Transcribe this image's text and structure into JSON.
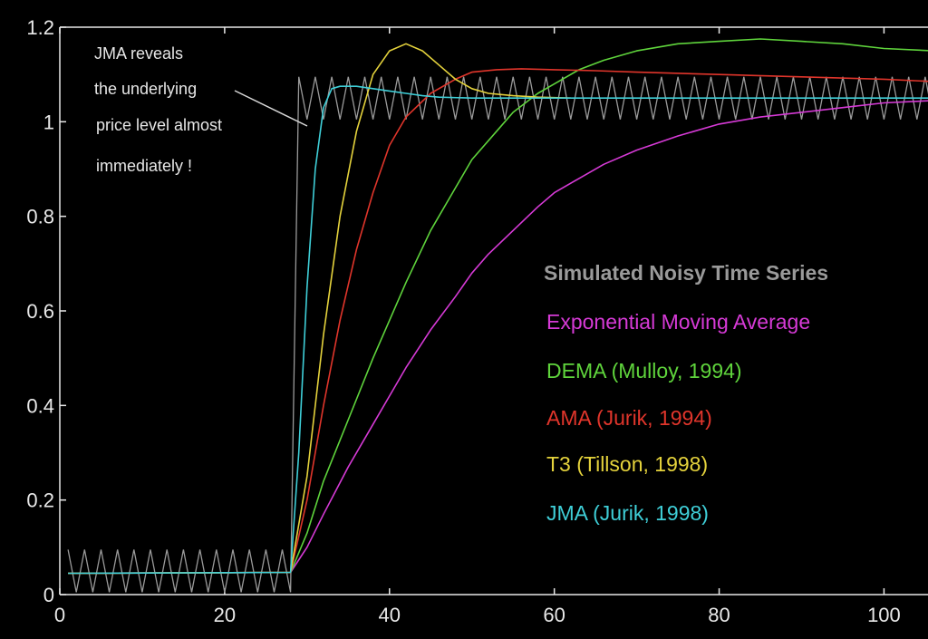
{
  "chart_data": {
    "type": "line",
    "xlim": [
      0,
      106
    ],
    "ylim": [
      0,
      1.2
    ],
    "x_ticks": [
      0,
      20,
      40,
      60,
      80,
      100
    ],
    "x_tick_labels": [
      "0",
      "20",
      "40",
      "60",
      "80",
      "100"
    ],
    "y_ticks": [
      0,
      0.2,
      0.4,
      0.6,
      0.8,
      1,
      1.2
    ],
    "y_tick_labels": [
      "0",
      "0.2",
      "0.4",
      "0.6",
      "0.8",
      "1",
      "1.2"
    ],
    "grid": false,
    "legend": {
      "placement": "right-center",
      "entries": [
        {
          "text": "Simulated Noisy Time Series",
          "color": "#9a9a9a",
          "bold": true
        },
        {
          "text": "Exponential Moving Average",
          "color": "#d63ad6"
        },
        {
          "text": "DEMA   (Mulloy, 1994)",
          "color": "#5fd43c"
        },
        {
          "text": "AMA   (Jurik, 1994)",
          "color": "#e0352b"
        },
        {
          "text": "T3   (Tillson, 1998)",
          "color": "#e4d23c"
        },
        {
          "text": "JMA   (Jurik, 1998)",
          "color": "#3fcfd8"
        }
      ]
    },
    "annotation": {
      "lines": [
        "JMA reveals",
        "the underlying",
        "price level almost",
        "immediately !"
      ],
      "arrow_to": [
        30,
        1.0
      ]
    },
    "noisy_series": {
      "color": "#9a9a9a",
      "x_start": 1,
      "x_end": 106,
      "step": 1,
      "base_low": 0.05,
      "base_high": 1.05,
      "step_x": 28.5,
      "amplitude": 0.045
    },
    "series": [
      {
        "color": "#d63ad6",
        "x": [
          1,
          28,
          30,
          32,
          35,
          38,
          40,
          42,
          45,
          48,
          50,
          52,
          55,
          58,
          60,
          63,
          66,
          70,
          75,
          80,
          85,
          90,
          95,
          100,
          106
        ],
        "y": [
          0.045,
          0.047,
          0.1,
          0.17,
          0.27,
          0.36,
          0.42,
          0.48,
          0.56,
          0.63,
          0.68,
          0.72,
          0.77,
          0.82,
          0.85,
          0.88,
          0.91,
          0.94,
          0.97,
          0.995,
          1.01,
          1.02,
          1.03,
          1.04,
          1.045
        ]
      },
      {
        "color": "#5fd43c",
        "x": [
          1,
          28,
          30,
          32,
          35,
          38,
          40,
          42,
          45,
          48,
          50,
          53,
          55,
          58,
          60,
          63,
          66,
          70,
          75,
          80,
          85,
          90,
          95,
          100,
          106
        ],
        "y": [
          0.045,
          0.047,
          0.13,
          0.24,
          0.37,
          0.5,
          0.58,
          0.66,
          0.77,
          0.86,
          0.92,
          0.98,
          1.02,
          1.06,
          1.08,
          1.11,
          1.13,
          1.15,
          1.165,
          1.17,
          1.175,
          1.17,
          1.165,
          1.155,
          1.15
        ]
      },
      {
        "color": "#e0352b",
        "x": [
          1,
          28,
          30,
          32,
          34,
          36,
          38,
          40,
          42,
          45,
          48,
          50,
          53,
          56,
          60,
          65,
          70,
          80,
          90,
          100,
          106
        ],
        "y": [
          0.045,
          0.047,
          0.2,
          0.4,
          0.58,
          0.73,
          0.85,
          0.95,
          1.01,
          1.06,
          1.09,
          1.105,
          1.11,
          1.112,
          1.11,
          1.108,
          1.105,
          1.1,
          1.095,
          1.09,
          1.085
        ]
      },
      {
        "color": "#e4d23c",
        "x": [
          1,
          28,
          30,
          32,
          34,
          36,
          38,
          40,
          42,
          44,
          46,
          48,
          50,
          52,
          55,
          58,
          60,
          62
        ],
        "y": [
          0.045,
          0.047,
          0.25,
          0.55,
          0.8,
          0.98,
          1.1,
          1.15,
          1.165,
          1.15,
          1.12,
          1.09,
          1.07,
          1.06,
          1.055,
          1.052,
          1.051,
          1.05
        ]
      },
      {
        "color": "#3fcfd8",
        "x": [
          1,
          28,
          29,
          30,
          31,
          32,
          33,
          34,
          36,
          38,
          40,
          42,
          44,
          46,
          50,
          55,
          60,
          70,
          80,
          90,
          100,
          106
        ],
        "y": [
          0.045,
          0.047,
          0.3,
          0.65,
          0.9,
          1.03,
          1.07,
          1.075,
          1.075,
          1.07,
          1.065,
          1.06,
          1.055,
          1.052,
          1.05,
          1.05,
          1.05,
          1.05,
          1.05,
          1.05,
          1.05,
          1.05
        ]
      }
    ]
  }
}
